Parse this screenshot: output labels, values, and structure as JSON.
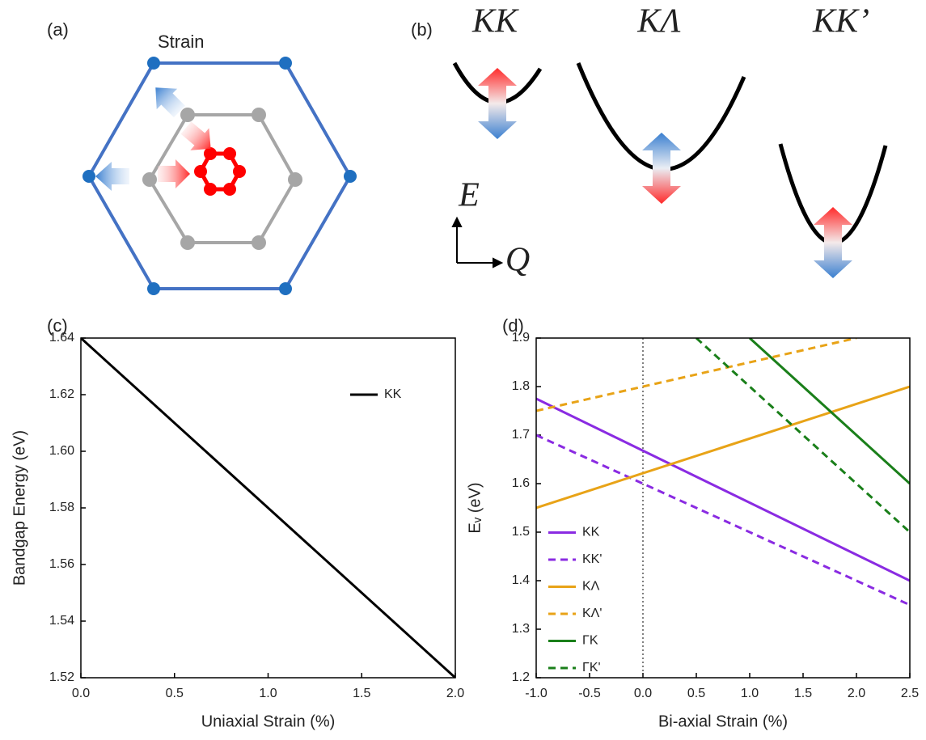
{
  "diagram": {
    "a_label": "(a)",
    "strain": "Strain",
    "b_label": "(b)",
    "band_titles": [
      "KK",
      "KΛ",
      "KK’"
    ],
    "energy_axis": "E",
    "momentum_axis": "Q"
  },
  "chart_data": [
    {
      "type": "line",
      "label": "(c)",
      "xlabel": "Uniaxial Strain (%)",
      "ylabel": "Bandgap Energy (eV)",
      "xlim": [
        0,
        2
      ],
      "xticks": [
        {
          "value": 0,
          "label": "0.0"
        },
        0.5,
        {
          "value": 1,
          "label": "1.0"
        },
        1.5,
        {
          "value": 2,
          "label": "2.0"
        }
      ],
      "ylim": [
        1.52,
        1.64
      ],
      "yticks": [
        1.52,
        1.54,
        1.56,
        1.58,
        {
          "value": 1.6,
          "label": "1.60"
        },
        1.62,
        1.64
      ],
      "legend": "upper right",
      "series": [
        {
          "name": "KK",
          "color": "#000000",
          "linestyle": "solid",
          "x": [
            0,
            2
          ],
          "values": [
            1.64,
            1.52
          ]
        }
      ]
    },
    {
      "type": "line",
      "label": "(d)",
      "xlabel": "Bi-axial Strain (%)",
      "ylabel": "Eᵥ (eV)",
      "xlim": [
        -1,
        2.5
      ],
      "xticks": [
        {
          "value": -1,
          "label": "-1.0"
        },
        -0.5,
        {
          "value": 0,
          "label": "0.0"
        },
        0.5,
        {
          "value": 1,
          "label": "1.0"
        },
        1.5,
        {
          "value": 2,
          "label": "2.0"
        },
        2.5
      ],
      "ylim": [
        1.2,
        1.9
      ],
      "yticks": [
        1.2,
        1.3,
        1.4,
        1.5,
        1.6,
        1.7,
        1.8,
        1.9
      ],
      "legend": "lower left",
      "reference_line": 0,
      "series": [
        {
          "name": "KK",
          "color": "#8a2be2",
          "linestyle": "solid",
          "x": [
            -1,
            2.5
          ],
          "values": [
            1.775,
            1.4
          ]
        },
        {
          "name": "KK'",
          "color": "#8a2be2",
          "linestyle": "dashed",
          "x": [
            -1,
            2.5
          ],
          "values": [
            1.7,
            1.35
          ]
        },
        {
          "name": "KΛ",
          "color": "#e8a317",
          "linestyle": "solid",
          "x": [
            -1,
            2.5
          ],
          "values": [
            1.55,
            1.8
          ]
        },
        {
          "name": "KΛ'",
          "color": "#e8a317",
          "linestyle": "dashed",
          "x": [
            -1,
            2
          ],
          "values": [
            1.75,
            1.9
          ]
        },
        {
          "name": "ΓK",
          "color": "#1a7f1a",
          "linestyle": "solid",
          "x": [
            1,
            2.5
          ],
          "values": [
            1.9,
            1.6
          ]
        },
        {
          "name": "ΓK'",
          "color": "#1a7f1a",
          "linestyle": "dashed",
          "x": [
            0.5,
            2.5
          ],
          "values": [
            1.9,
            1.5
          ]
        }
      ]
    }
  ]
}
